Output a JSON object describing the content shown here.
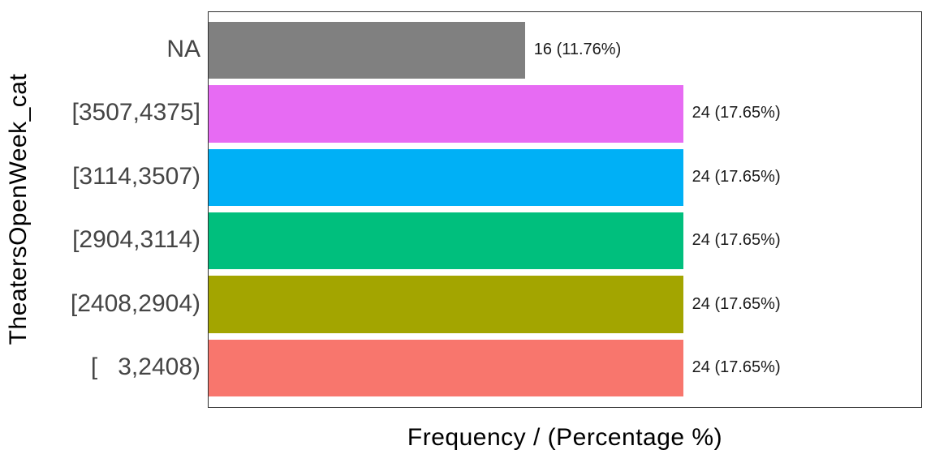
{
  "chart_data": {
    "type": "bar",
    "orientation": "horizontal",
    "xlabel": "Frequency / (Percentage %)",
    "ylabel": "TheatersOpenWeek_cat",
    "xlim": [
      0,
      36
    ],
    "grid": false,
    "legend": "none",
    "categories": [
      "NA",
      "[3507,4375]",
      "[3114,3507)",
      "[2904,3114)",
      "[2408,2904)",
      "[   3,2408)"
    ],
    "values": [
      16,
      24,
      24,
      24,
      24,
      24
    ],
    "percentages": [
      11.76,
      17.65,
      17.65,
      17.65,
      17.65,
      17.65
    ],
    "bar_labels": [
      "16 (11.76%)",
      "24 (17.65%)",
      "24 (17.65%)",
      "24 (17.65%)",
      "24 (17.65%)",
      "24 (17.65%)"
    ],
    "bar_colors": [
      "#808080",
      "#E76BF3",
      "#00B0F6",
      "#00BF7D",
      "#A3A500",
      "#F8766D"
    ],
    "panel_border_color": "#2e2e2e",
    "category_label_color": "#454545",
    "value_label_color": "#1a1a1a",
    "axis_title_color": "#000000"
  }
}
